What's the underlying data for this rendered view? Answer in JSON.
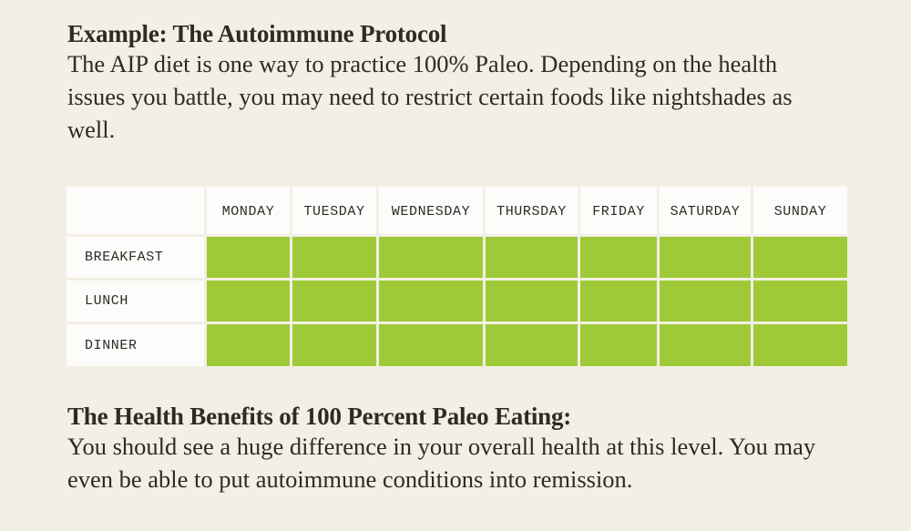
{
  "intro": {
    "title": "Example: The Autoimmune Protocol",
    "text": "The AIP diet is one way to practice 100% Paleo. Depending on the health issues you battle, you may need to restrict certain foods like nightshades as well."
  },
  "schedule": {
    "days": [
      "MONDAY",
      "TUESDAY",
      "WEDNESDAY",
      "THURSDAY",
      "FRIDAY",
      "SATURDAY",
      "SUNDAY"
    ],
    "meals": [
      "BREAKFAST",
      "LUNCH",
      "DINNER"
    ],
    "fill_color": "#9fca38"
  },
  "benefits": {
    "title": "The Health Benefits of 100 Percent Paleo Eating:",
    "text": "You should see a huge difference in your overall health at this level. You may even be able to put autoimmune conditions into remission."
  }
}
